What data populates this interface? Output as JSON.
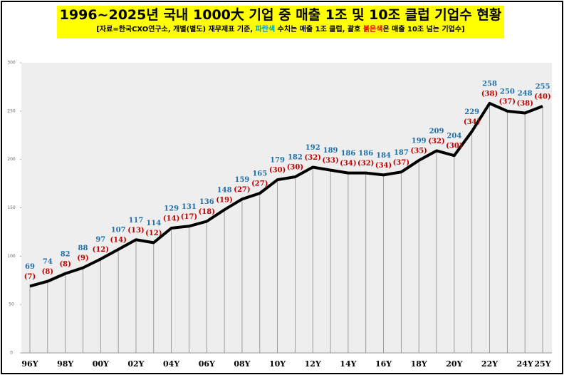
{
  "chart_data": {
    "type": "line",
    "title": "1996~2025년 국내 1000大 기업 중 매출 1조 및 10조 클럽 기업수 현황",
    "subtitle": [
      {
        "text": "[자료=한국CXO연구소, 개별(별도) 재무제표 기준, ",
        "color": "#000000"
      },
      {
        "text": "파란색",
        "color": "#00a0c0"
      },
      {
        "text": " 수치는 매출 1조 클럽, 괄호 ",
        "color": "#000000"
      },
      {
        "text": "붉은색",
        "color": "#e00000"
      },
      {
        "text": "은 매출 10조 넘는 기업수]",
        "color": "#000000"
      }
    ],
    "categories": [
      "96Y",
      null,
      "98Y",
      null,
      "00Y",
      null,
      "02Y",
      null,
      "04Y",
      null,
      "06Y",
      null,
      "08Y",
      null,
      "10Y",
      null,
      "12Y",
      null,
      "14Y",
      null,
      "16Y",
      null,
      "18Y",
      null,
      "20Y",
      null,
      "22Y",
      null,
      "24Y",
      "25Y"
    ],
    "series": [
      {
        "name": "매출 1조 클럽",
        "color": "#1f6fa8",
        "line_color": "#000000",
        "values": [
          69,
          74,
          82,
          88,
          97,
          107,
          117,
          114,
          129,
          131,
          136,
          148,
          159,
          165,
          179,
          182,
          192,
          189,
          186,
          186,
          184,
          187,
          199,
          209,
          204,
          229,
          258,
          250,
          248,
          255
        ]
      },
      {
        "name": "매출 10조 클럽",
        "color": "#c00000",
        "values": [
          7,
          8,
          8,
          9,
          12,
          14,
          13,
          12,
          14,
          17,
          18,
          19,
          27,
          27,
          30,
          30,
          32,
          33,
          34,
          32,
          34,
          37,
          35,
          32,
          30,
          34,
          38,
          37,
          38,
          40
        ],
        "value_labels": [
          "(7)",
          "(8)",
          "(8)",
          "(9)",
          "(12)",
          "(14)",
          "(13)",
          "(12)",
          "(14)",
          "(17)",
          "(18)",
          "(19)",
          "(27)",
          "(27)",
          "(30)",
          "(30)",
          "(32)",
          "(33)",
          "(34)",
          "(32)",
          "(34)",
          "(37)",
          "(35)",
          "(32)",
          "(30)",
          "(34)",
          "(38)",
          "(37)",
          "(38)",
          "(40)"
        ]
      }
    ],
    "ylim": [
      0,
      300
    ],
    "yticks": [
      0,
      50,
      100,
      150,
      200,
      250,
      300
    ],
    "plot_background": "#eeeeee"
  }
}
